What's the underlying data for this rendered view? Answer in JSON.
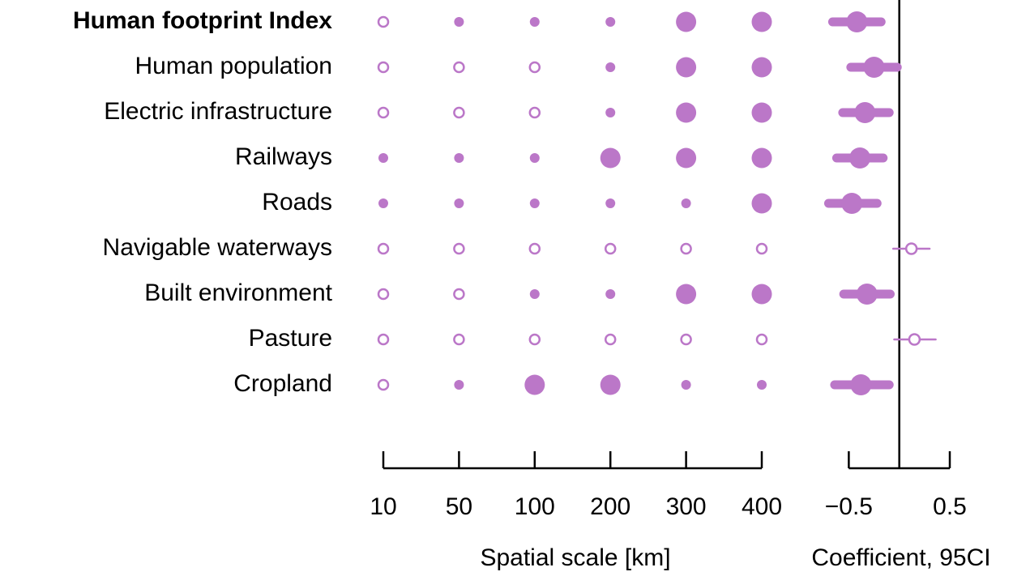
{
  "chart_data": [
    {
      "type": "dotmatrix",
      "rows": [
        "Human footprint Index",
        "Human population",
        "Electric infrastructure",
        "Railways",
        "Roads",
        "Navigable waterways",
        "Built environment",
        "Pasture",
        "Cropland"
      ],
      "categories": [
        "10",
        "50",
        "100",
        "200",
        "300",
        "400"
      ],
      "levels": [
        [
          0,
          1,
          1,
          1,
          2,
          2
        ],
        [
          0,
          0,
          0,
          1,
          2,
          2
        ],
        [
          0,
          0,
          0,
          1,
          2,
          2
        ],
        [
          1,
          1,
          1,
          2,
          2,
          2
        ],
        [
          1,
          1,
          1,
          1,
          1,
          2
        ],
        [
          0,
          0,
          0,
          0,
          0,
          0
        ],
        [
          0,
          0,
          1,
          1,
          2,
          2
        ],
        [
          0,
          0,
          0,
          0,
          0,
          0
        ],
        [
          0,
          1,
          2,
          2,
          1,
          1
        ]
      ],
      "xlabel": "Spatial scale [km]",
      "color": "#bb77c8"
    },
    {
      "type": "forest",
      "estimates": [
        -0.42,
        -0.25,
        -0.34,
        -0.39,
        -0.47,
        0.12,
        -0.32,
        0.15,
        -0.38
      ],
      "ci_low": [
        -0.66,
        -0.48,
        -0.56,
        -0.62,
        -0.7,
        -0.06,
        -0.55,
        -0.05,
        -0.64
      ],
      "ci_high": [
        -0.18,
        -0.02,
        -0.1,
        -0.16,
        -0.22,
        0.3,
        -0.09,
        0.36,
        -0.1
      ],
      "xlim": [
        -0.8,
        0.5
      ],
      "xticks": [
        {
          "value": -0.5,
          "label": "−0.5"
        },
        {
          "value": 0.5,
          "label": "0.5"
        }
      ],
      "zero_line": 0,
      "xlabel": "Coefficient, 95CI",
      "color": "#bb77c8"
    }
  ]
}
